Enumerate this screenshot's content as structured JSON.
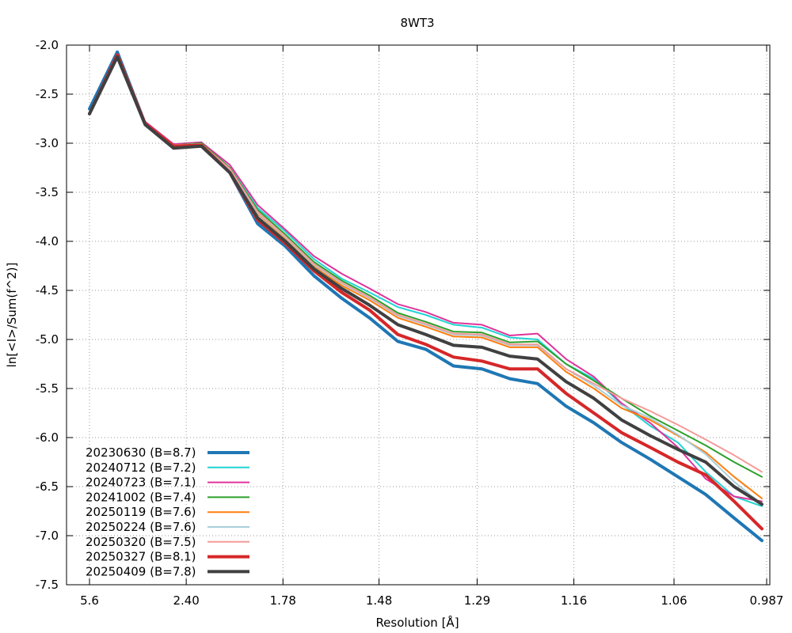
{
  "chart_data": {
    "type": "line",
    "title": "8WT3",
    "xlabel": "Resolution [Å]",
    "ylabel": "ln[<I>/Sum(f^2)]",
    "x_unit": "1/d^2 (Å^-2)",
    "xlim": [
      0.0,
      1.0
    ],
    "ylim": [
      -7.5,
      -2.0
    ],
    "yticks": [
      -2.0,
      -2.5,
      -3.0,
      -3.5,
      -4.0,
      -4.5,
      -5.0,
      -5.5,
      -6.0,
      -6.5,
      -7.0,
      -7.5
    ],
    "xtick_labels": [
      "5.6",
      "2.40",
      "1.78",
      "1.48",
      "1.29",
      "1.16",
      "1.06",
      "0.987"
    ],
    "xticks": [
      0.032,
      0.174,
      0.316,
      0.457,
      0.601,
      0.743,
      0.89,
      1.026
    ],
    "grid": true,
    "legend_position": "bottom-left",
    "x": [
      0.032,
      0.072,
      0.112,
      0.153,
      0.193,
      0.234,
      0.274,
      0.314,
      0.355,
      0.395,
      0.435,
      0.476,
      0.516,
      0.556,
      0.597,
      0.637,
      0.677,
      0.718,
      0.758,
      0.798,
      0.839,
      0.879,
      0.919,
      0.96,
      1.0
    ],
    "series": [
      {
        "name": "20230630 (B=8.7)",
        "color": "#1f77b4",
        "width": 4,
        "values": [
          -2.65,
          -2.07,
          -2.8,
          -3.02,
          -3.0,
          -3.3,
          -3.82,
          -4.05,
          -4.35,
          -4.58,
          -4.78,
          -5.02,
          -5.1,
          -5.27,
          -5.3,
          -5.4,
          -5.45,
          -5.68,
          -5.85,
          -6.05,
          -6.22,
          -6.4,
          -6.58,
          -6.82,
          -7.05
        ]
      },
      {
        "name": "20240712 (B=7.2)",
        "color": "#22d3d3",
        "width": 2,
        "values": [
          -2.7,
          -2.1,
          -2.78,
          -3.01,
          -2.99,
          -3.25,
          -3.66,
          -3.9,
          -4.18,
          -4.38,
          -4.52,
          -4.67,
          -4.75,
          -4.85,
          -4.88,
          -4.98,
          -5.0,
          -5.25,
          -5.4,
          -5.66,
          -5.88,
          -6.05,
          -6.35,
          -6.6,
          -6.7
        ]
      },
      {
        "name": "20240723 (B=7.1)",
        "color": "#e0339a",
        "width": 2,
        "values": [
          -2.7,
          -2.1,
          -2.78,
          -3.01,
          -2.99,
          -3.22,
          -3.63,
          -3.88,
          -4.15,
          -4.33,
          -4.48,
          -4.64,
          -4.72,
          -4.83,
          -4.85,
          -4.96,
          -4.94,
          -5.2,
          -5.38,
          -5.65,
          -5.85,
          -6.1,
          -6.42,
          -6.6,
          -6.65
        ]
      },
      {
        "name": "20241002 (B=7.4)",
        "color": "#2ca02c",
        "width": 2,
        "values": [
          -2.7,
          -2.1,
          -2.79,
          -3.02,
          -3.0,
          -3.25,
          -3.68,
          -3.93,
          -4.21,
          -4.4,
          -4.55,
          -4.73,
          -4.82,
          -4.92,
          -4.93,
          -5.03,
          -5.02,
          -5.25,
          -5.42,
          -5.6,
          -5.78,
          -5.93,
          -6.08,
          -6.25,
          -6.4
        ]
      },
      {
        "name": "20250119 (B=7.6)",
        "color": "#ff7f0e",
        "width": 2,
        "values": [
          -2.7,
          -2.1,
          -2.79,
          -3.02,
          -3.01,
          -3.27,
          -3.72,
          -3.97,
          -4.25,
          -4.45,
          -4.6,
          -4.78,
          -4.87,
          -4.97,
          -4.98,
          -5.08,
          -5.08,
          -5.33,
          -5.5,
          -5.7,
          -5.82,
          -5.98,
          -6.15,
          -6.4,
          -6.62
        ]
      },
      {
        "name": "20250224 (B=7.6)",
        "color": "#a9cfdb",
        "width": 2,
        "values": [
          -2.7,
          -2.1,
          -2.79,
          -3.02,
          -3.01,
          -3.27,
          -3.71,
          -3.96,
          -4.24,
          -4.43,
          -4.58,
          -4.76,
          -4.85,
          -4.95,
          -4.96,
          -5.06,
          -5.06,
          -5.3,
          -5.47,
          -5.67,
          -5.8,
          -5.97,
          -6.17,
          -6.45,
          -6.68
        ]
      },
      {
        "name": "20250320 (B=7.5)",
        "color": "#f59a9a",
        "width": 2,
        "values": [
          -2.7,
          -2.1,
          -2.79,
          -3.02,
          -3.01,
          -3.26,
          -3.7,
          -3.95,
          -4.23,
          -4.42,
          -4.57,
          -4.75,
          -4.84,
          -4.94,
          -4.95,
          -5.05,
          -5.05,
          -5.3,
          -5.45,
          -5.6,
          -5.73,
          -5.87,
          -6.02,
          -6.18,
          -6.35
        ]
      },
      {
        "name": "20250327 (B=8.1)",
        "color": "#d62728",
        "width": 4,
        "values": [
          -2.7,
          -2.1,
          -2.8,
          -3.03,
          -3.02,
          -3.3,
          -3.78,
          -4.02,
          -4.3,
          -4.52,
          -4.7,
          -4.95,
          -5.05,
          -5.18,
          -5.22,
          -5.3,
          -5.3,
          -5.55,
          -5.75,
          -5.95,
          -6.1,
          -6.25,
          -6.38,
          -6.65,
          -6.93
        ]
      },
      {
        "name": "20250409 (B=7.8)",
        "color": "#404040",
        "width": 4,
        "values": [
          -2.7,
          -2.12,
          -2.81,
          -3.05,
          -3.03,
          -3.3,
          -3.76,
          -4.0,
          -4.28,
          -4.48,
          -4.65,
          -4.85,
          -4.95,
          -5.06,
          -5.08,
          -5.17,
          -5.2,
          -5.43,
          -5.6,
          -5.82,
          -5.98,
          -6.12,
          -6.25,
          -6.5,
          -6.68
        ]
      }
    ]
  }
}
